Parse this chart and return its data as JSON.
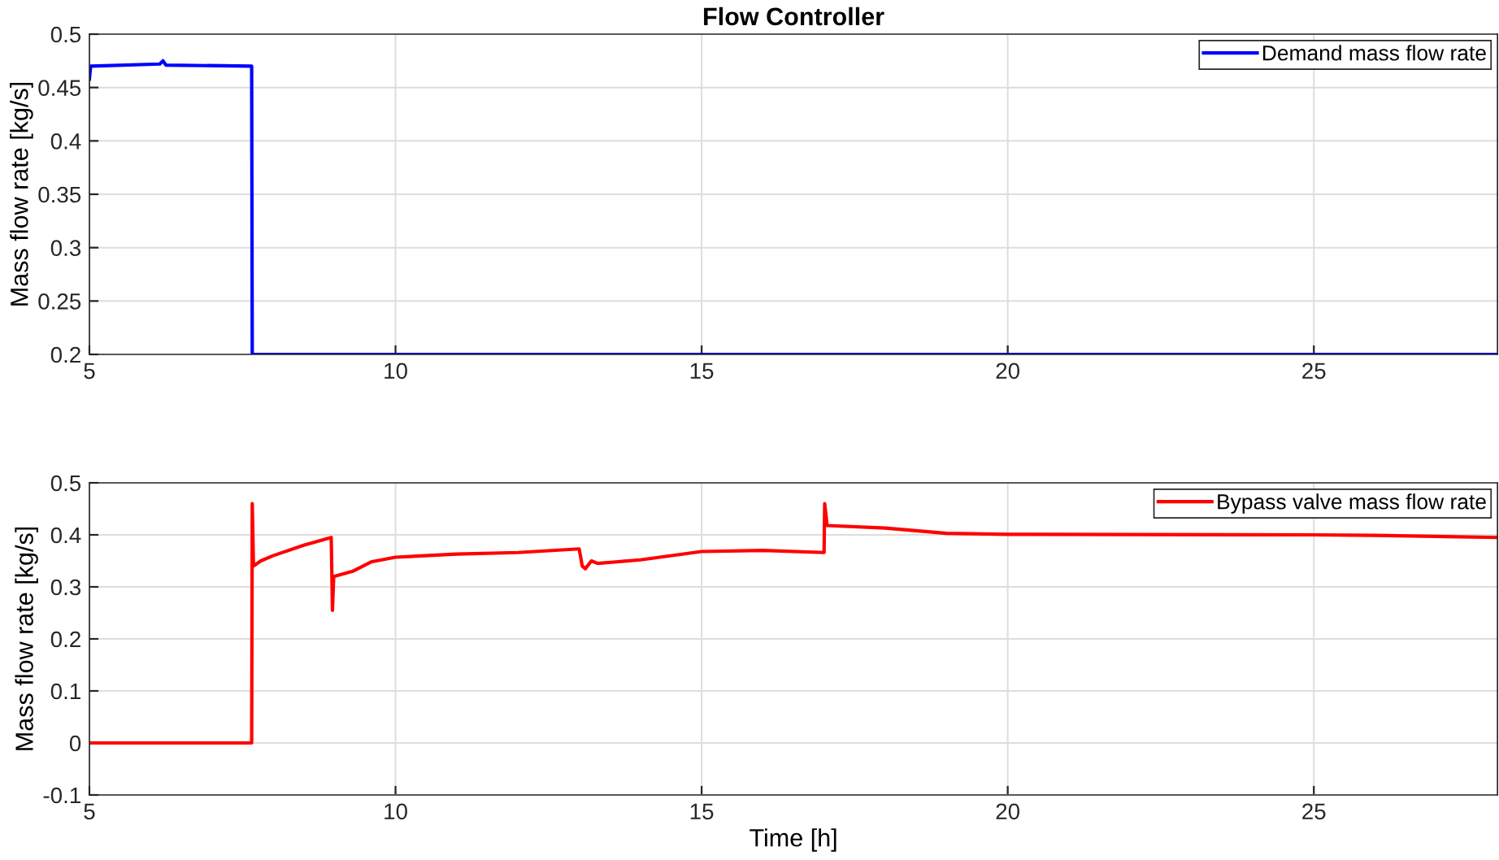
{
  "chart_data": [
    {
      "type": "line",
      "title": "Flow Controller",
      "ylabel": "Mass flow rate [kg/s]",
      "xlim": [
        5,
        28
      ],
      "xticks": [
        5,
        10,
        15,
        20,
        25
      ],
      "ylim": [
        0.2,
        0.5
      ],
      "yticks": [
        0.2,
        0.25,
        0.3,
        0.35,
        0.4,
        0.45,
        0.5
      ],
      "grid": true,
      "legend": "top right",
      "series": [
        {
          "name": "Demand mass flow rate",
          "color": "#0000ff",
          "x": [
            5,
            5.02,
            6.15,
            6.2,
            6.25,
            7.65,
            7.66,
            28
          ],
          "values": [
            0.458,
            0.47,
            0.472,
            0.475,
            0.471,
            0.47,
            0.2,
            0.2
          ]
        }
      ]
    },
    {
      "type": "line",
      "xlabel": "Time [h]",
      "ylabel": "Mass flow rate [kg/s]",
      "xlim": [
        5,
        28
      ],
      "xticks": [
        5,
        10,
        15,
        20,
        25
      ],
      "ylim": [
        -0.1,
        0.5
      ],
      "yticks": [
        -0.1,
        0,
        0.1,
        0.2,
        0.3,
        0.4,
        0.5
      ],
      "grid": true,
      "legend": "top right",
      "series": [
        {
          "name": "Bypass valve mass flow rate",
          "color": "#ff0000",
          "x": [
            5,
            7.65,
            7.66,
            7.68,
            7.8,
            8,
            8.5,
            8.95,
            8.97,
            8.99,
            9.3,
            9.6,
            10,
            11,
            12,
            13,
            13.05,
            13.1,
            13.2,
            13.3,
            14,
            15,
            16,
            17,
            17.01,
            17.05,
            18,
            19,
            20,
            25,
            26,
            28
          ],
          "values": [
            0,
            0,
            0.46,
            0.34,
            0.35,
            0.36,
            0.38,
            0.395,
            0.255,
            0.32,
            0.33,
            0.348,
            0.357,
            0.363,
            0.366,
            0.373,
            0.34,
            0.335,
            0.35,
            0.345,
            0.352,
            0.368,
            0.37,
            0.366,
            0.46,
            0.418,
            0.413,
            0.403,
            0.401,
            0.4,
            0.399,
            0.395
          ]
        }
      ]
    }
  ]
}
